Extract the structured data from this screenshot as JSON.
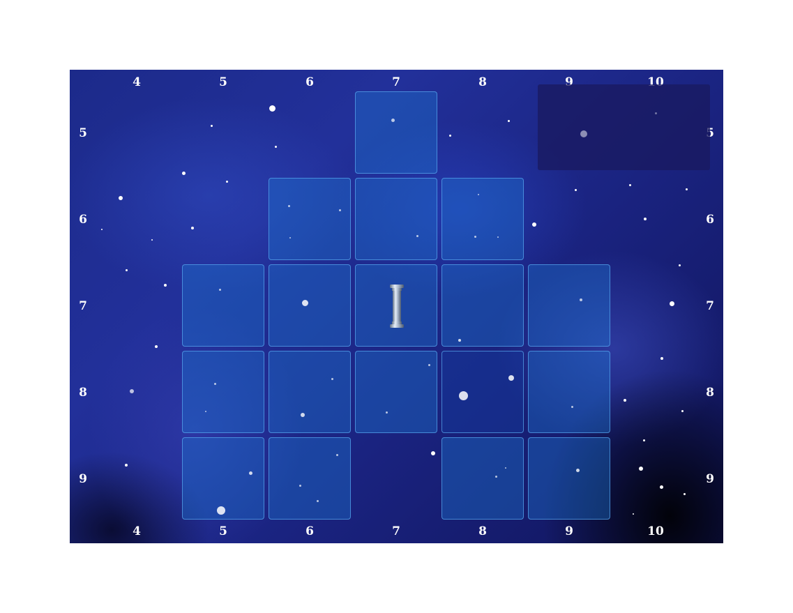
{
  "board": {
    "columns": [
      "4",
      "5",
      "6",
      "7",
      "8",
      "9",
      "10"
    ],
    "rows": [
      "5",
      "6",
      "7",
      "8",
      "9"
    ],
    "tiles": [
      {
        "col": "7",
        "row": "5"
      },
      {
        "col": "6",
        "row": "6"
      },
      {
        "col": "7",
        "row": "6"
      },
      {
        "col": "8",
        "row": "6"
      },
      {
        "col": "5",
        "row": "7"
      },
      {
        "col": "6",
        "row": "7"
      },
      {
        "col": "7",
        "row": "7"
      },
      {
        "col": "8",
        "row": "7"
      },
      {
        "col": "9",
        "row": "7"
      },
      {
        "col": "5",
        "row": "8"
      },
      {
        "col": "6",
        "row": "8"
      },
      {
        "col": "7",
        "row": "8"
      },
      {
        "col": "8",
        "row": "8"
      },
      {
        "col": "9",
        "row": "8"
      },
      {
        "col": "5",
        "row": "9"
      },
      {
        "col": "6",
        "row": "9"
      },
      {
        "col": "8",
        "row": "9"
      },
      {
        "col": "9",
        "row": "9"
      }
    ],
    "piece": {
      "col": "7",
      "row": "7",
      "icon": "pillar-icon"
    },
    "colors": {
      "tile_fill": "#1e78d2",
      "tile_border": "#5aaaf0",
      "panel_fill": "#19195f",
      "label": "#ffffff"
    }
  }
}
